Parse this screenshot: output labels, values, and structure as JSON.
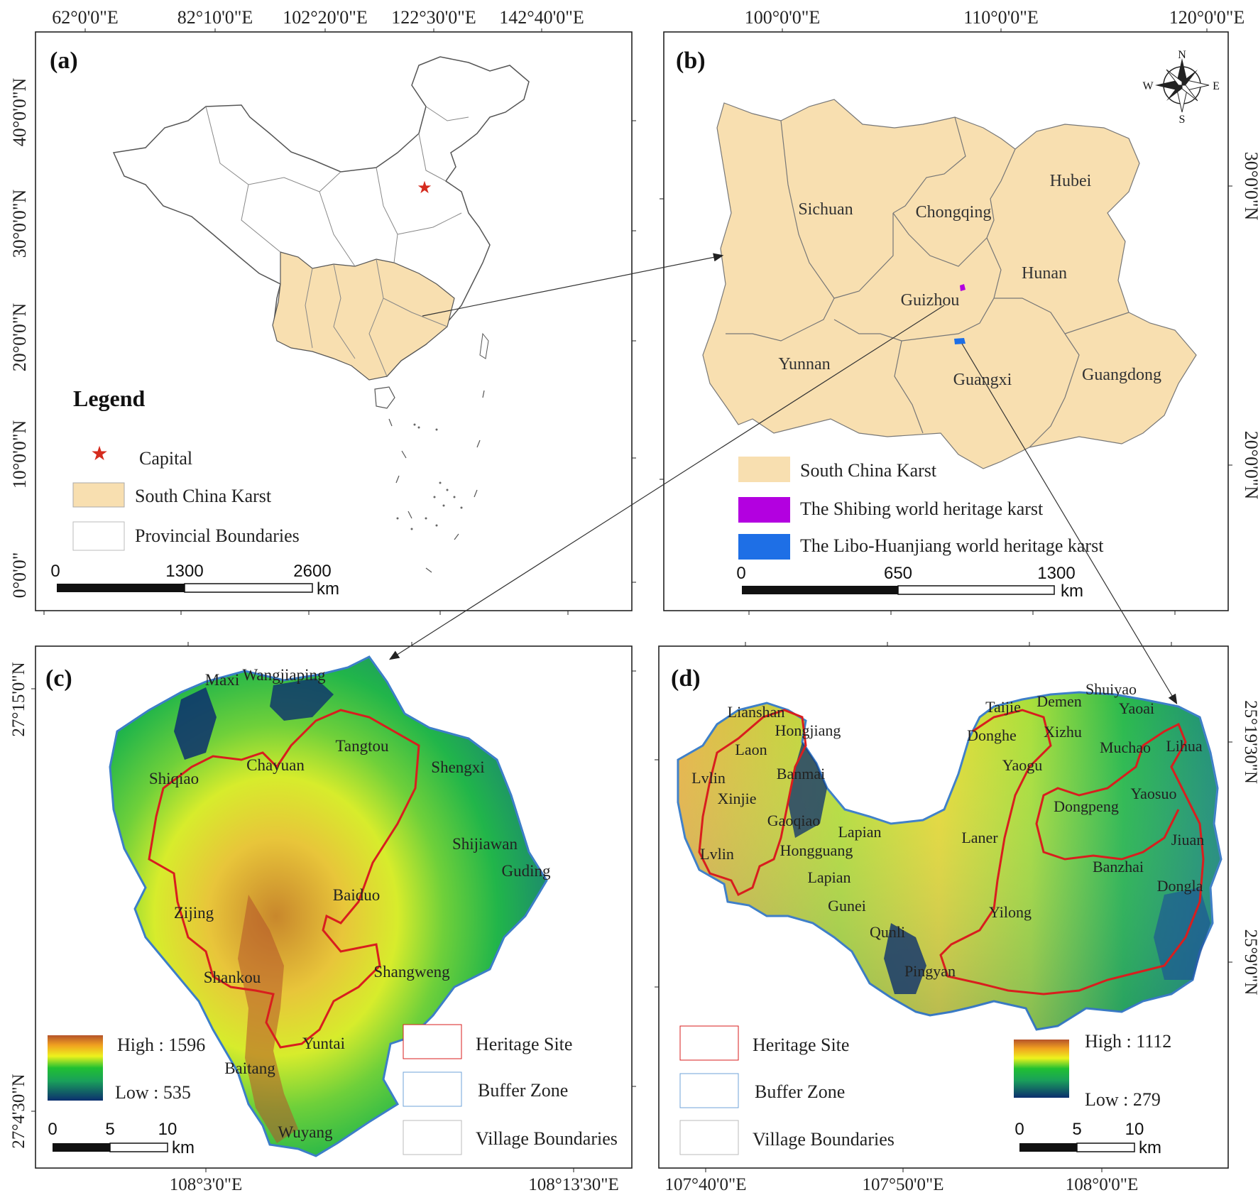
{
  "panel_a": {
    "label": "(a)",
    "lon_ticks": [
      "62°0'0\"E",
      "82°10'0\"E",
      "102°20'0\"E",
      "122°30'0\"E",
      "142°40'0\"E"
    ],
    "lat_ticks": [
      "40°0'0\"N",
      "30°0'0\"N",
      "20°0'0\"N",
      "10°0'0\"N",
      "0°0'0\""
    ],
    "legend_title": "Legend",
    "legend": {
      "capital": "Capital",
      "karst": "South China Karst",
      "provincial": "Provincial Boundaries"
    },
    "scale": {
      "t0": "0",
      "t1": "1300",
      "t2": "2600",
      "unit": "km"
    }
  },
  "panel_b": {
    "label": "(b)",
    "lon_ticks": [
      "100°0'0\"E",
      "110°0'0\"E",
      "120°0'0\"E"
    ],
    "lat_ticks": [
      "30°0'0\"N",
      "20°0'0\"N"
    ],
    "compass": {
      "n": "N",
      "s": "S",
      "e": "E",
      "w": "W"
    },
    "provinces": [
      "Sichuan",
      "Chongqing",
      "Hubei",
      "Hunan",
      "Guizhou",
      "Yunnan",
      "Guangxi",
      "Guangdong"
    ],
    "legend": {
      "karst": "South China Karst",
      "shibing": "The Shibing world heritage karst",
      "libo": "The Libo-Huanjiang world heritage karst"
    },
    "scale": {
      "t0": "0",
      "t1": "650",
      "t2": "1300",
      "unit": "km"
    }
  },
  "panel_c": {
    "label": "(c)",
    "lat_ticks": [
      "27°15'0\"N",
      "27°4'30\"N"
    ],
    "lon_ticks": [
      "108°3'0\"E",
      "108°13'30\"E"
    ],
    "villages": [
      "Maxi",
      "Wangjiaping",
      "Tangtou",
      "Chayuan",
      "Shiqiao",
      "Shengxi",
      "Shijiawan",
      "Guding",
      "Baiduo",
      "Zijing",
      "Shankou",
      "Shangweng",
      "Yuntai",
      "Baitang",
      "Wuyang"
    ],
    "elevation": {
      "high": "High : 1596",
      "low": "Low : 535"
    },
    "legend": {
      "heritage": "Heritage Site",
      "buffer": "Buffer Zone",
      "village": "Village Boundaries"
    },
    "scale": {
      "t0": "0",
      "t1": "5",
      "t2": "10",
      "unit": "km"
    }
  },
  "panel_d": {
    "label": "(d)",
    "lat_ticks": [
      "25°19'30\"N",
      "25°9'0\"N"
    ],
    "lon_ticks": [
      "107°40'0\"E",
      "107°50'0\"E",
      "108°0'0\"E"
    ],
    "villages": [
      "Lianshan",
      "Hongjiang",
      "Laon",
      "Lvlin",
      "Banmai",
      "Xinjie",
      "Gaoqiao",
      "Lapian",
      "Lvlin",
      "Hongguang",
      "Lapian",
      "Gunei",
      "Qunli",
      "Pingyan",
      "Taijie",
      "Demen",
      "Shuiyao",
      "Yaoai",
      "Donghe",
      "Xizhu",
      "Muchao",
      "Lihua",
      "Yaogu",
      "Dongpeng",
      "Yaosuo",
      "Laner",
      "Jiuan",
      "Banzhai",
      "Dongla",
      "Yilong"
    ],
    "elevation": {
      "high": "High : 1112",
      "low": "Low : 279"
    },
    "legend": {
      "heritage": "Heritage Site",
      "buffer": "Buffer Zone",
      "village": "Village Boundaries"
    },
    "scale": {
      "t0": "0",
      "t1": "5",
      "t2": "10",
      "unit": "km"
    }
  },
  "colors": {
    "karst": "#f8dfb0",
    "capital": "#d52b1e",
    "heritage": "#d81e1e",
    "buffer": "#3c7ec8",
    "shibing": "#b300e0",
    "libo": "#1e6fe6",
    "elev_high": "#b5532a",
    "elev_mid": "#eef21d",
    "elev_green": "#20c032",
    "elev_low": "#0c2f6e"
  }
}
